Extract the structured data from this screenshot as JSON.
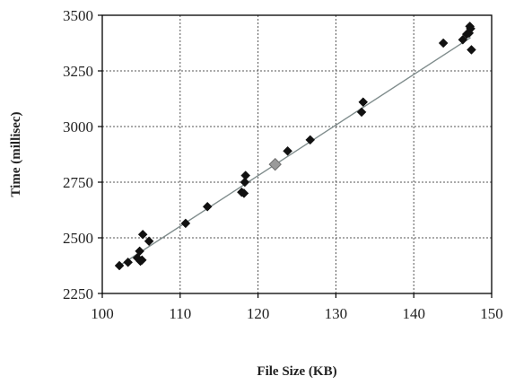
{
  "colors": {
    "marker": "#111111",
    "highlight_marker": "#9a9a9a",
    "trendline": "#7f8c8c",
    "grid": "#555555",
    "axis": "#000000"
  },
  "chart_data": {
    "type": "scatter",
    "title": "",
    "xlabel": "File Size (KB)",
    "ylabel": "Time (millisec)",
    "xlim": [
      100,
      150
    ],
    "ylim": [
      2250,
      3500
    ],
    "x_ticks": [
      100,
      110,
      120,
      130,
      140,
      150
    ],
    "y_ticks": [
      2250,
      2500,
      2750,
      3000,
      3250,
      3500
    ],
    "grid": "dashed major grid on both axes",
    "legend": "none",
    "series": [
      {
        "marker": "diamond",
        "color": "#111111",
        "points": [
          [
            102.2,
            2375
          ],
          [
            103.3,
            2390
          ],
          [
            104.5,
            2410
          ],
          [
            104.8,
            2440
          ],
          [
            104.9,
            2395
          ],
          [
            105.1,
            2400
          ],
          [
            105.2,
            2515
          ],
          [
            106.0,
            2485
          ],
          [
            110.7,
            2565
          ],
          [
            113.5,
            2640
          ],
          [
            117.9,
            2705
          ],
          [
            118.2,
            2700
          ],
          [
            118.3,
            2750
          ],
          [
            118.4,
            2780
          ],
          [
            123.8,
            2890
          ],
          [
            126.7,
            2940
          ],
          [
            133.3,
            3065
          ],
          [
            133.5,
            3110
          ],
          [
            143.8,
            3375
          ],
          [
            146.3,
            3390
          ],
          [
            146.8,
            3415
          ],
          [
            147.1,
            3420
          ],
          [
            147.2,
            3450
          ],
          [
            147.3,
            3440
          ],
          [
            147.4,
            3345
          ]
        ]
      },
      {
        "marker": "diamond",
        "color": "#9a9a9a",
        "points": [
          [
            122.2,
            2830
          ]
        ]
      }
    ],
    "trendline": {
      "x": [
        102.0,
        147.3
      ],
      "y": [
        2370,
        3400
      ]
    }
  }
}
